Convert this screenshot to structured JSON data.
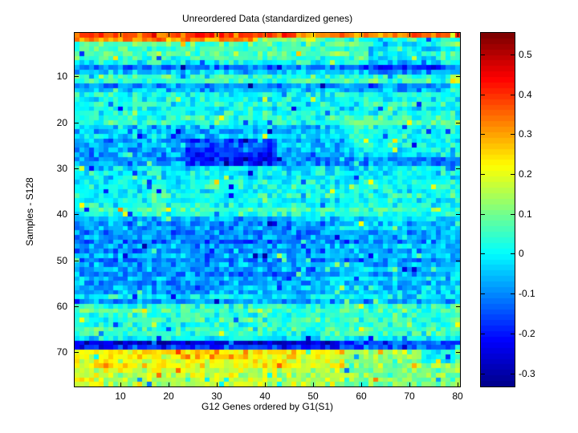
{
  "figure": {
    "background": "#FFFFFF",
    "axis_color": "#000000"
  },
  "chart_data": {
    "type": "heatmap",
    "title": "Unreordered Data (standardized genes)",
    "xlabel": "G12 Genes ordered by G1(S1)",
    "ylabel": "Samples - S128",
    "n_rows": 77,
    "n_cols": 80,
    "x_ticks": [
      10,
      20,
      30,
      40,
      50,
      60,
      70,
      80
    ],
    "y_ticks": [
      10,
      20,
      30,
      40,
      50,
      60,
      70
    ],
    "grid": false,
    "legend_position": "colorbar-right",
    "colorbar": {
      "tick_values": [
        0.5,
        0.4,
        0.3,
        0.2,
        0.1,
        0,
        -0.1,
        -0.2,
        -0.3
      ],
      "tick_labels": [
        "0.5",
        "0.4",
        "0.3",
        "0.2",
        "0.1",
        "0",
        "-0.1",
        "-0.2",
        "-0.3"
      ],
      "bands": 64
    },
    "clim": [
      -0.333,
      0.554
    ],
    "colormap": "jet",
    "colormap_stops": [
      {
        "t": 0.0,
        "rgb": [
          0,
          0,
          143
        ]
      },
      {
        "t": 0.125,
        "rgb": [
          0,
          0,
          255
        ]
      },
      {
        "t": 0.375,
        "rgb": [
          0,
          255,
          255
        ]
      },
      {
        "t": 0.625,
        "rgb": [
          255,
          255,
          0
        ]
      },
      {
        "t": 0.875,
        "rgb": [
          255,
          0,
          0
        ]
      },
      {
        "t": 1.0,
        "rgb": [
          128,
          0,
          0
        ]
      }
    ],
    "value_model": {
      "comment": "cell(r,c) = row_means[r] + sum(patch deltas covering r,c) + triangular noise(±2*sigma) + rare outliers; clamped to clim",
      "row_means": [
        0.33,
        0.02,
        0.07,
        0.05,
        0.08,
        0.06,
        0.01,
        -0.11,
        -0.04,
        0.05,
        0.06,
        -0.09,
        -0.06,
        0.02,
        0.0,
        0.03,
        -0.01,
        0.02,
        0.04,
        0.03,
        -0.04,
        -0.06,
        -0.04,
        -0.07,
        -0.05,
        -0.07,
        -0.09,
        -0.11,
        -0.09,
        -0.02,
        0.0,
        -0.02,
        0.01,
        0.02,
        0.0,
        0.03,
        0.0,
        0.02,
        0.06,
        0.03,
        -0.04,
        -0.07,
        -0.05,
        -0.08,
        -0.06,
        -0.09,
        -0.05,
        -0.08,
        -0.04,
        -0.08,
        -0.06,
        -0.05,
        -0.08,
        -0.04,
        -0.06,
        -0.03,
        -0.05,
        -0.01,
        -0.09,
        0.04,
        0.06,
        0.03,
        0.05,
        0.03,
        0.05,
        0.04,
        0.0,
        -0.22,
        -0.13,
        0.13,
        0.12,
        0.11,
        0.12,
        0.11,
        0.1,
        0.11,
        0.1
      ],
      "patches": [
        {
          "rows": [
            1,
            1
          ],
          "cols": [
            1,
            45
          ],
          "delta": 0.06
        },
        {
          "rows": [
            2,
            2
          ],
          "cols": [
            1,
            38
          ],
          "delta": 0.3
        },
        {
          "rows": [
            2,
            2
          ],
          "cols": [
            39,
            50
          ],
          "delta": 0.12
        },
        {
          "rows": [
            3,
            9
          ],
          "cols": [
            62,
            76
          ],
          "delta": -0.08
        },
        {
          "rows": [
            10,
            13
          ],
          "cols": [
            79,
            80
          ],
          "delta": 0.15
        },
        {
          "rows": [
            20,
            27
          ],
          "cols": [
            57,
            80
          ],
          "delta": 0.07
        },
        {
          "rows": [
            24,
            29
          ],
          "cols": [
            24,
            42
          ],
          "delta": -0.1
        },
        {
          "rows": [
            41,
            57
          ],
          "cols": [
            1,
            52
          ],
          "delta": -0.03
        },
        {
          "rows": [
            68,
            69
          ],
          "cols": [
            1,
            55
          ],
          "delta": -0.06
        },
        {
          "rows": [
            68,
            68
          ],
          "cols": [
            56,
            80
          ],
          "delta": 0.08
        },
        {
          "rows": [
            70,
            73
          ],
          "cols": [
            1,
            56
          ],
          "delta": 0.1
        },
        {
          "rows": [
            74,
            77
          ],
          "cols": [
            1,
            56
          ],
          "delta": 0.06
        },
        {
          "rows": [
            70,
            72
          ],
          "cols": [
            73,
            79
          ],
          "delta": -0.12
        },
        {
          "rows": [
            70,
            71
          ],
          "cols": [
            24,
            36
          ],
          "delta": 0.05
        }
      ],
      "noise": {
        "seed": 1337,
        "sigma": 0.05,
        "outlier_prob": 0.06,
        "outlier_amp": 0.22
      }
    }
  }
}
